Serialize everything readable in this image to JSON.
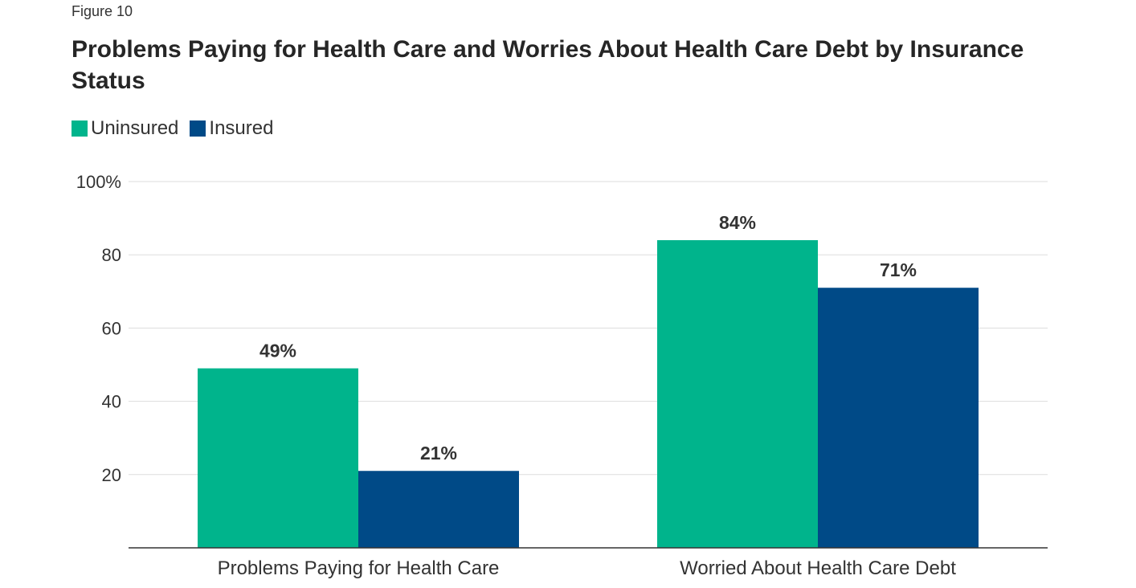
{
  "figure_label": "Figure 10",
  "colors": {
    "uninsured": "#00B48C",
    "insured": "#004A87",
    "grid": "#dddddd",
    "axis": "#333333"
  },
  "chart_data": {
    "type": "bar",
    "title": "Problems Paying for Health Care and Worries About Health Care Debt by Insurance Status",
    "categories": [
      "Problems Paying for Health Care",
      "Worried About Health Care Debt"
    ],
    "series": [
      {
        "name": "Uninsured",
        "values": [
          49,
          84
        ],
        "labels": [
          "49%",
          "84%"
        ]
      },
      {
        "name": "Insured",
        "values": [
          21,
          71
        ],
        "labels": [
          "21%",
          "71%"
        ]
      }
    ],
    "ylim": [
      0,
      100
    ],
    "yticks": [
      20,
      40,
      60,
      80,
      100
    ],
    "ytick_labels": [
      "20",
      "40",
      "60",
      "80",
      "100%"
    ],
    "xlabel": "",
    "ylabel": "",
    "grid": true,
    "legend_position": "top-left"
  }
}
